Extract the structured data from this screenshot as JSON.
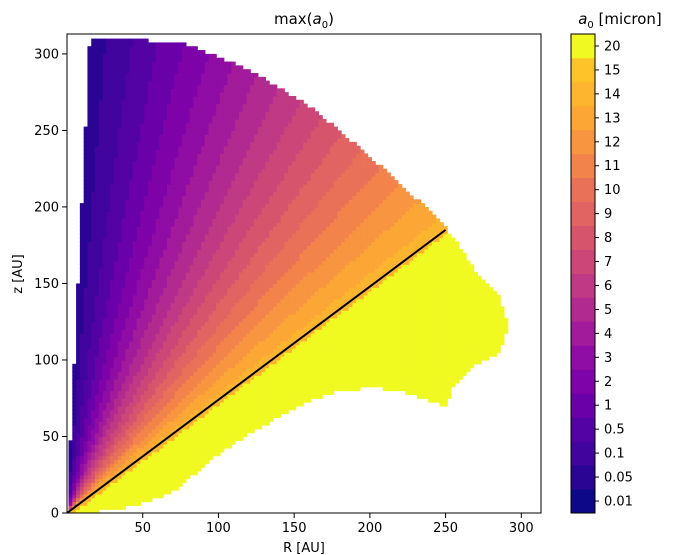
{
  "chart_data": {
    "type": "heatmap",
    "title_prefix": "max(",
    "title_var": "a",
    "title_sub": "0",
    "title_suffix": ")",
    "xlabel": "R [AU]",
    "ylabel": "z [AU]",
    "xlim": [
      0,
      313
    ],
    "ylim": [
      0,
      313
    ],
    "x_ticks": [
      50,
      100,
      150,
      200,
      250,
      300
    ],
    "y_ticks": [
      0,
      50,
      100,
      150,
      200,
      250,
      300
    ],
    "x_tick_labels": [
      "50",
      "100",
      "150",
      "200",
      "250",
      "300"
    ],
    "y_tick_labels": [
      "0",
      "50",
      "100",
      "150",
      "200",
      "250",
      "300"
    ],
    "colorbar": {
      "label_var": "a",
      "label_sub": "0",
      "label_unit": " [micron]",
      "levels": [
        "0.01",
        "0.05",
        "0.1",
        "0.5",
        "1",
        "2",
        "3",
        "4",
        "5",
        "6",
        "7",
        "8",
        "9",
        "10",
        "11",
        "12",
        "13",
        "14",
        "15",
        "20"
      ],
      "colors": [
        "#0d0887",
        "#2a0593",
        "#41049d",
        "#5302a3",
        "#6a00a8",
        "#7e03a8",
        "#8f0da4",
        "#a11b9b",
        "#b12a90",
        "#bf3984",
        "#cc4778",
        "#d6556d",
        "#e16462",
        "#e97158",
        "#f2844b",
        "#f89540",
        "#fca636",
        "#fdb42f",
        "#fdc328",
        "#f0f921"
      ]
    },
    "boundary_line": {
      "color": "#000000",
      "points": [
        [
          0,
          0
        ],
        [
          250,
          185
        ]
      ]
    },
    "outer_edge_points": [
      [
        15,
        310
      ],
      [
        40,
        310
      ],
      [
        80,
        306
      ],
      [
        120,
        290
      ],
      [
        160,
        266
      ],
      [
        200,
        233
      ],
      [
        230,
        206
      ],
      [
        250,
        187
      ],
      [
        270,
        158
      ],
      [
        285,
        142
      ],
      [
        292,
        122
      ],
      [
        285,
        105
      ],
      [
        270,
        97
      ],
      [
        255,
        82
      ],
      [
        250,
        70
      ],
      [
        240,
        73
      ],
      [
        220,
        80
      ],
      [
        200,
        82
      ],
      [
        180,
        80
      ],
      [
        160,
        73
      ],
      [
        140,
        63
      ],
      [
        120,
        52
      ],
      [
        95,
        35
      ],
      [
        80,
        22
      ],
      [
        70,
        14
      ],
      [
        55,
        8
      ],
      [
        40,
        4
      ],
      [
        20,
        1
      ],
      [
        0,
        0
      ]
    ]
  }
}
